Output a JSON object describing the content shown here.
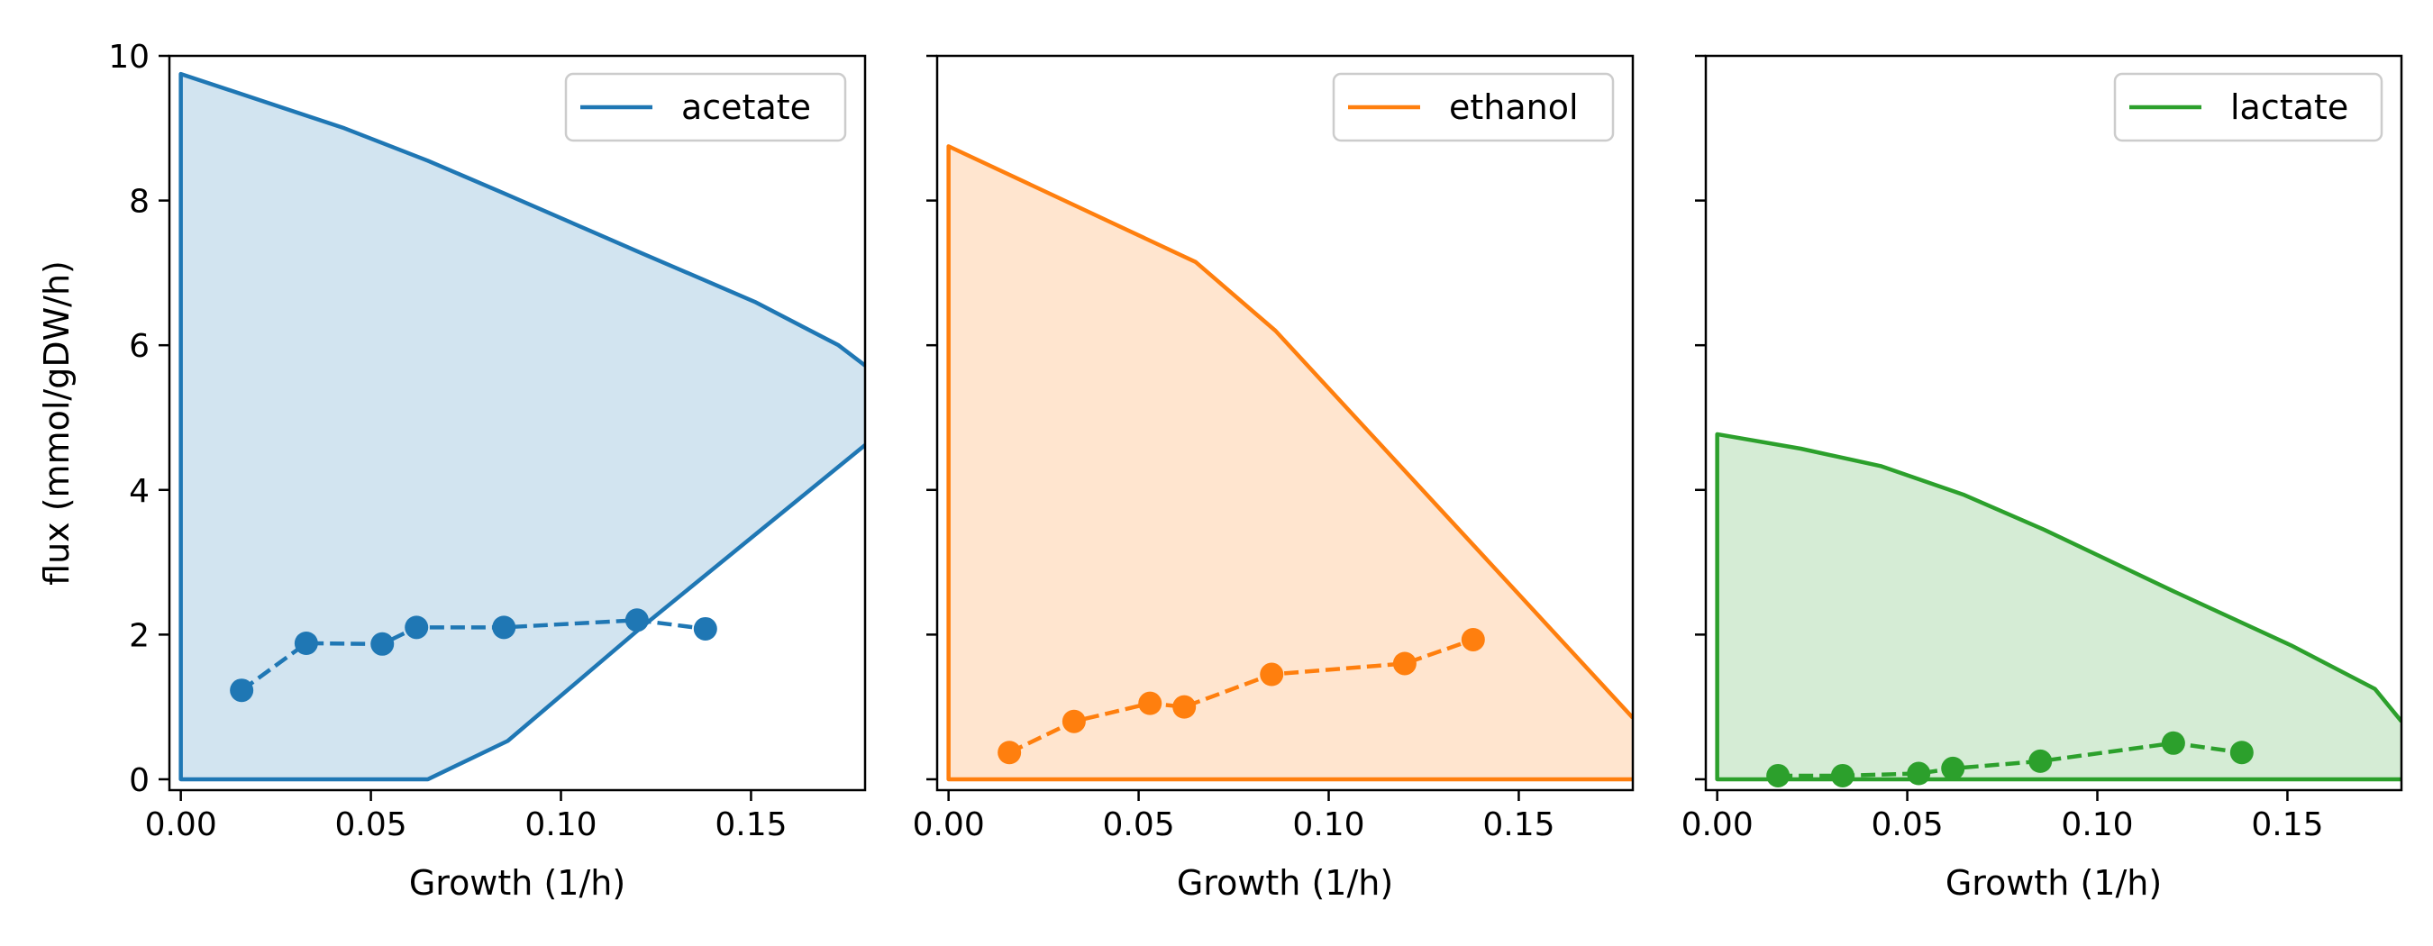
{
  "chart_data": [
    {
      "type": "area",
      "color": "#1f77b4",
      "fill_color": "#1f77b4",
      "xlabel": "Growth (1/h)",
      "ylabel": "flux (mmol/gDW/h)",
      "xlim": [
        -0.003,
        0.18
      ],
      "ylim": [
        -0.15,
        10
      ],
      "x_ticks": [
        "0.00",
        "0.05",
        "0.10",
        "0.15"
      ],
      "x_tick_values": [
        0,
        0.05,
        0.1,
        0.15
      ],
      "y_ticks": [
        "0",
        "2",
        "4",
        "6",
        "8",
        "10"
      ],
      "y_tick_values": [
        0,
        2,
        4,
        6,
        8,
        10
      ],
      "show_y_tick_labels": true,
      "legend": {
        "label": "acetate",
        "position": "upper right"
      },
      "envelope_upper": {
        "x": [
          0,
          0.043,
          0.065,
          0.085,
          0.12,
          0.151,
          0.173,
          0.18
        ],
        "y": [
          9.75,
          9.0,
          8.55,
          8.1,
          7.3,
          6.6,
          6.0,
          5.72
        ]
      },
      "envelope_lower": {
        "x": [
          0,
          0.065,
          0.086,
          0.12,
          0.18
        ],
        "y": [
          0,
          0,
          0.53,
          2.05,
          4.62
        ]
      },
      "measured": {
        "x": [
          0.016,
          0.033,
          0.053,
          0.062,
          0.085,
          0.12,
          0.138
        ],
        "y": [
          1.23,
          1.88,
          1.87,
          2.1,
          2.1,
          2.2,
          2.08
        ]
      }
    },
    {
      "type": "area",
      "color": "#ff7f0e",
      "fill_color": "#ff7f0e",
      "xlabel": "Growth (1/h)",
      "ylabel": "",
      "xlim": [
        -0.003,
        0.18
      ],
      "ylim": [
        -0.15,
        10
      ],
      "x_ticks": [
        "0.00",
        "0.05",
        "0.10",
        "0.15"
      ],
      "x_tick_values": [
        0,
        0.05,
        0.1,
        0.15
      ],
      "y_ticks": [
        "0",
        "2",
        "4",
        "6",
        "8",
        "10"
      ],
      "y_tick_values": [
        0,
        2,
        4,
        6,
        8,
        10
      ],
      "show_y_tick_labels": false,
      "legend": {
        "label": "ethanol",
        "position": "upper right"
      },
      "envelope_upper": {
        "x": [
          0,
          0.065,
          0.086,
          0.18
        ],
        "y": [
          8.75,
          7.15,
          6.2,
          0.85
        ]
      },
      "envelope_lower": {
        "x": [
          0,
          0.18
        ],
        "y": [
          0,
          0
        ]
      },
      "measured": {
        "x": [
          0.016,
          0.033,
          0.053,
          0.062,
          0.085,
          0.12,
          0.138
        ],
        "y": [
          0.37,
          0.8,
          1.05,
          1.0,
          1.45,
          1.6,
          1.93
        ]
      }
    },
    {
      "type": "area",
      "color": "#2ca02c",
      "fill_color": "#2ca02c",
      "xlabel": "Growth (1/h)",
      "ylabel": "",
      "xlim": [
        -0.003,
        0.18
      ],
      "ylim": [
        -0.15,
        10
      ],
      "x_ticks": [
        "0.00",
        "0.05",
        "0.10",
        "0.15"
      ],
      "x_tick_values": [
        0,
        0.05,
        0.1,
        0.15
      ],
      "y_ticks": [
        "0",
        "2",
        "4",
        "6",
        "8",
        "10"
      ],
      "y_tick_values": [
        0,
        2,
        4,
        6,
        8,
        10
      ],
      "show_y_tick_labels": false,
      "legend": {
        "label": "lactate",
        "position": "upper right"
      },
      "envelope_upper": {
        "x": [
          0,
          0.022,
          0.043,
          0.065,
          0.086,
          0.12,
          0.151,
          0.173,
          0.18
        ],
        "y": [
          4.77,
          4.57,
          4.33,
          3.93,
          3.45,
          2.6,
          1.85,
          1.25,
          0.8
        ]
      },
      "envelope_lower": {
        "x": [
          0,
          0.18
        ],
        "y": [
          0,
          0
        ]
      },
      "measured": {
        "x": [
          0.016,
          0.033,
          0.053,
          0.062,
          0.085,
          0.12,
          0.138
        ],
        "y": [
          0.05,
          0.05,
          0.08,
          0.15,
          0.25,
          0.5,
          0.37
        ]
      }
    }
  ]
}
